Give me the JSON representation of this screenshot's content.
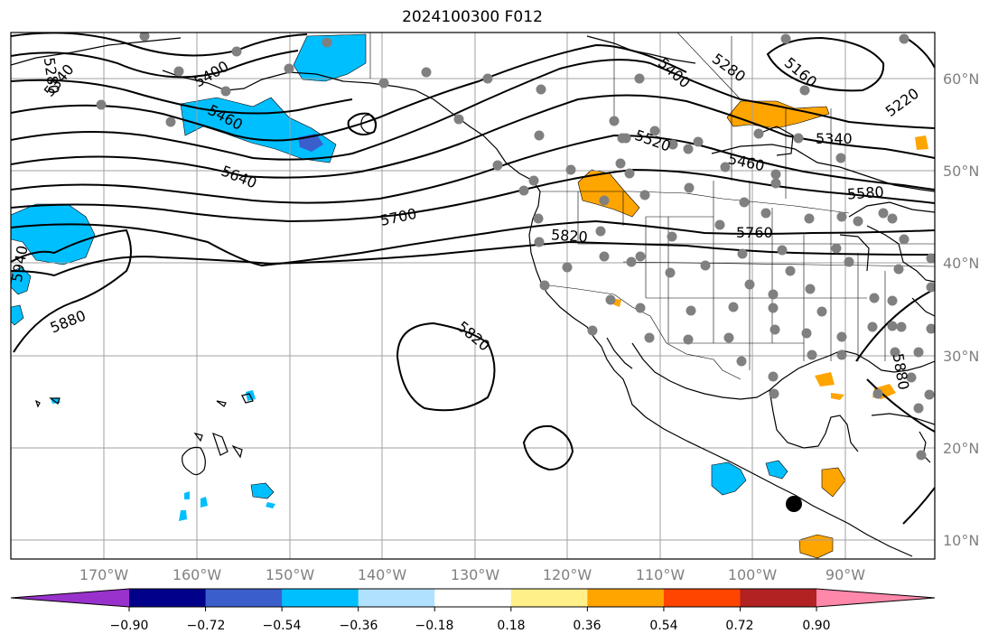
{
  "title": "2024100300 F012",
  "map": {
    "lat_labels": [
      "60°N",
      "50°N",
      "40°N",
      "30°N",
      "20°N",
      "10°N"
    ],
    "lon_labels": [
      "170°W",
      "160°W",
      "150°W",
      "140°W",
      "130°W",
      "120°W",
      "110°W",
      "100°W",
      "90°W"
    ],
    "contour_labels": [
      "5280",
      "5340",
      "5400",
      "5460",
      "5640",
      "5700",
      "5820",
      "5880",
      "5940",
      "5820",
      "5520",
      "5460",
      "5400",
      "5280",
      "5160",
      "5220",
      "5340",
      "5580",
      "5760",
      "5880"
    ],
    "colors": {
      "grid": "#a0a0a0",
      "contour": "#000000",
      "coast": "#000000",
      "station": "#808080",
      "marker": "#000000"
    }
  },
  "colorbar": {
    "tick_labels": [
      "−0.90",
      "−0.72",
      "−0.54",
      "−0.36",
      "−0.18",
      "0.18",
      "0.36",
      "0.54",
      "0.72",
      "0.90"
    ],
    "colors": [
      "#9932cc",
      "#00008b",
      "#3a5fcd",
      "#00bfff",
      "#b0e2ff",
      "#ffffff",
      "#fff08a",
      "#ffa500",
      "#ff4500",
      "#b22222",
      "#ff88aa"
    ]
  }
}
